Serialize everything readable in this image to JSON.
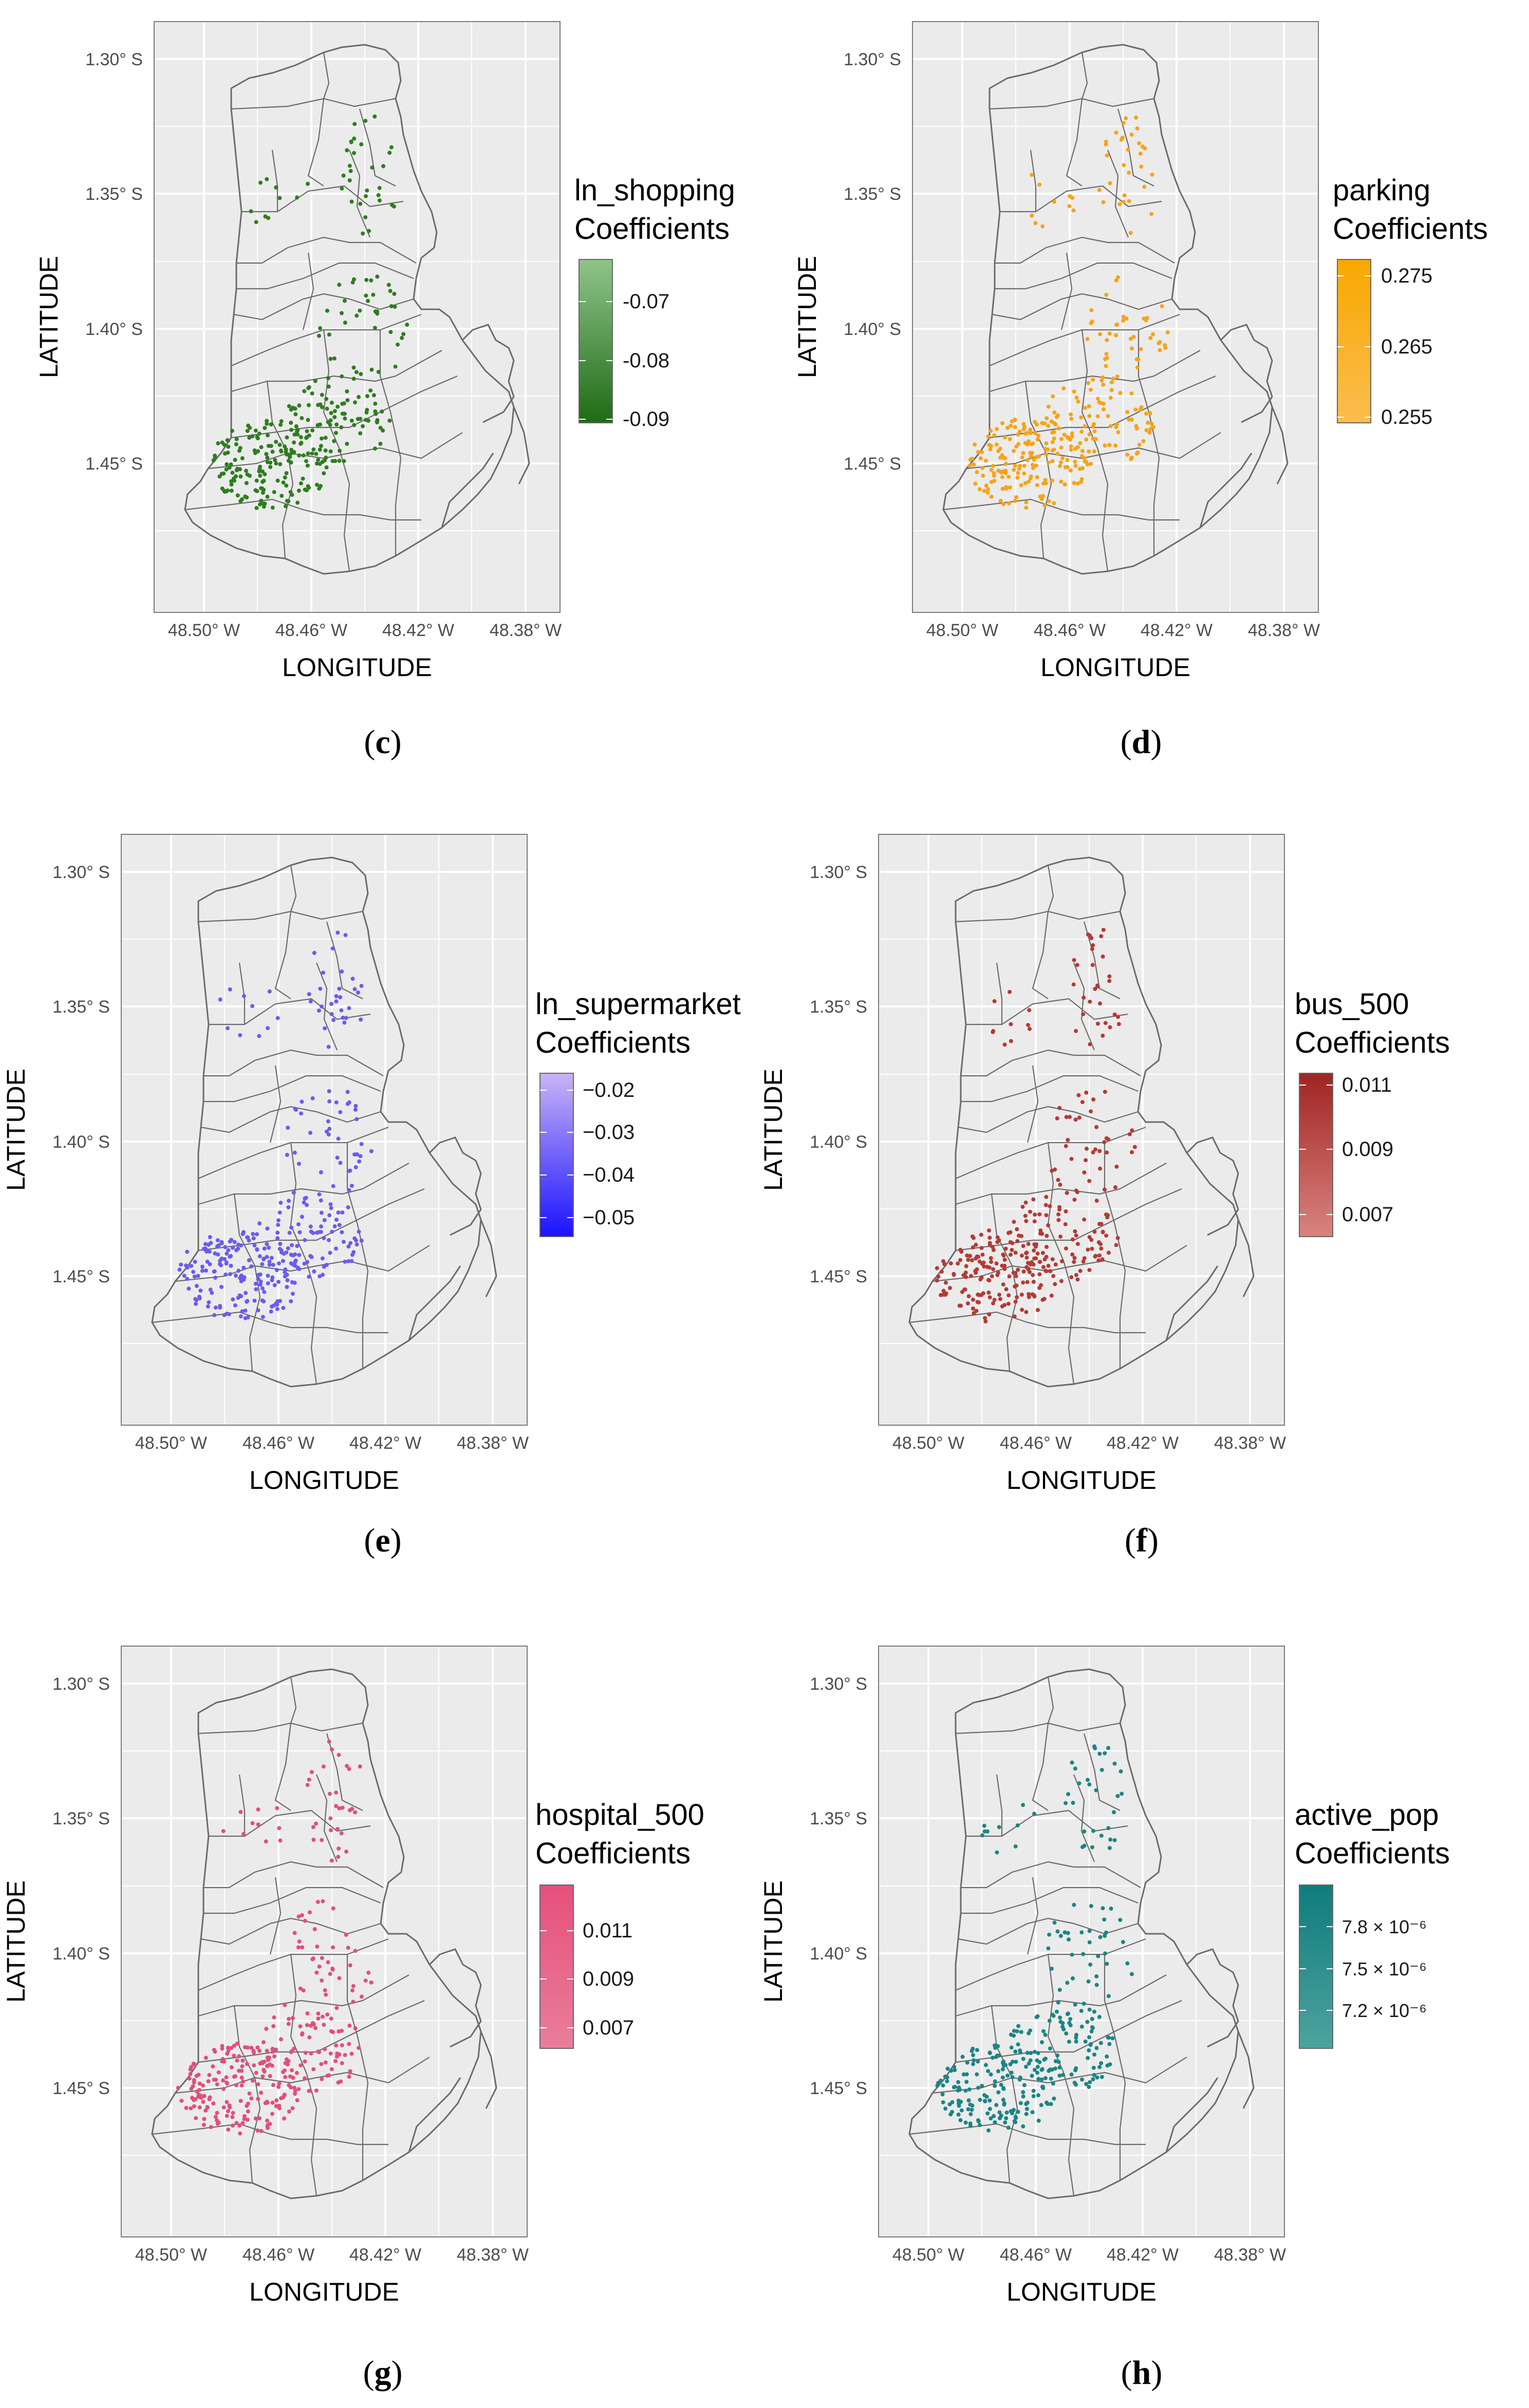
{
  "figure": {
    "axis": {
      "y_label": "LATITUDE",
      "x_label": "LONGITUDE",
      "y_ticks": [
        "1.30° S",
        "1.35° S",
        "1.40° S",
        "1.45° S"
      ],
      "x_ticks": [
        "48.50° W",
        "48.46° W",
        "48.42° W",
        "48.38° W"
      ]
    },
    "panels": [
      {
        "id": "c",
        "caption_letter": "c",
        "legend_title_line1": "ln_shopping",
        "legend_title_line2": "Coefficients",
        "legend_labels": [
          "-0.07",
          "-0.08",
          "-0.09"
        ],
        "color_high": "#8fc48a",
        "color_low": "#1f6b15",
        "point_color": "#2e7d1f"
      },
      {
        "id": "d",
        "caption_letter": "d",
        "legend_title_line1": "parking",
        "legend_title_line2": "Coefficients",
        "legend_labels": [
          "0.275",
          "0.265",
          "0.255"
        ],
        "color_high": "#f8a800",
        "color_low": "#fbbd4f",
        "point_color": "#f5a41a"
      },
      {
        "id": "e",
        "caption_letter": "e",
        "legend_title_line1": "ln_supermarket",
        "legend_title_line2": "Coefficients",
        "legend_labels": [
          "−0.02",
          "−0.03",
          "−0.04",
          "−0.05"
        ],
        "color_high": "#c9b4f5",
        "color_low": "#1a12ff",
        "point_color": "#6a5cf0"
      },
      {
        "id": "f",
        "caption_letter": "f",
        "legend_title_line1": "bus_500",
        "legend_title_line2": "Coefficients",
        "legend_labels": [
          "0.011",
          "0.009",
          "0.007"
        ],
        "color_high": "#a02424",
        "color_low": "#d9847e",
        "point_color": "#b53a35"
      },
      {
        "id": "g",
        "caption_letter": "g",
        "legend_title_line1": "hospital_500",
        "legend_title_line2": "Coefficients",
        "legend_labels": [
          "0.011",
          "0.009",
          "0.007"
        ],
        "color_high": "#e6507a",
        "color_low": "#e97e9a",
        "point_color": "#e0507a"
      },
      {
        "id": "h",
        "caption_letter": "h",
        "legend_title_line1": "active_pop",
        "legend_title_line2": "Coefficients",
        "legend_labels": [
          "7.8 × 10⁻⁶",
          "7.5 × 10⁻⁶",
          "7.2 × 10⁻⁶"
        ],
        "color_high": "#0f7c7c",
        "color_low": "#4ea39f",
        "point_color": "#1b8585"
      }
    ]
  }
}
